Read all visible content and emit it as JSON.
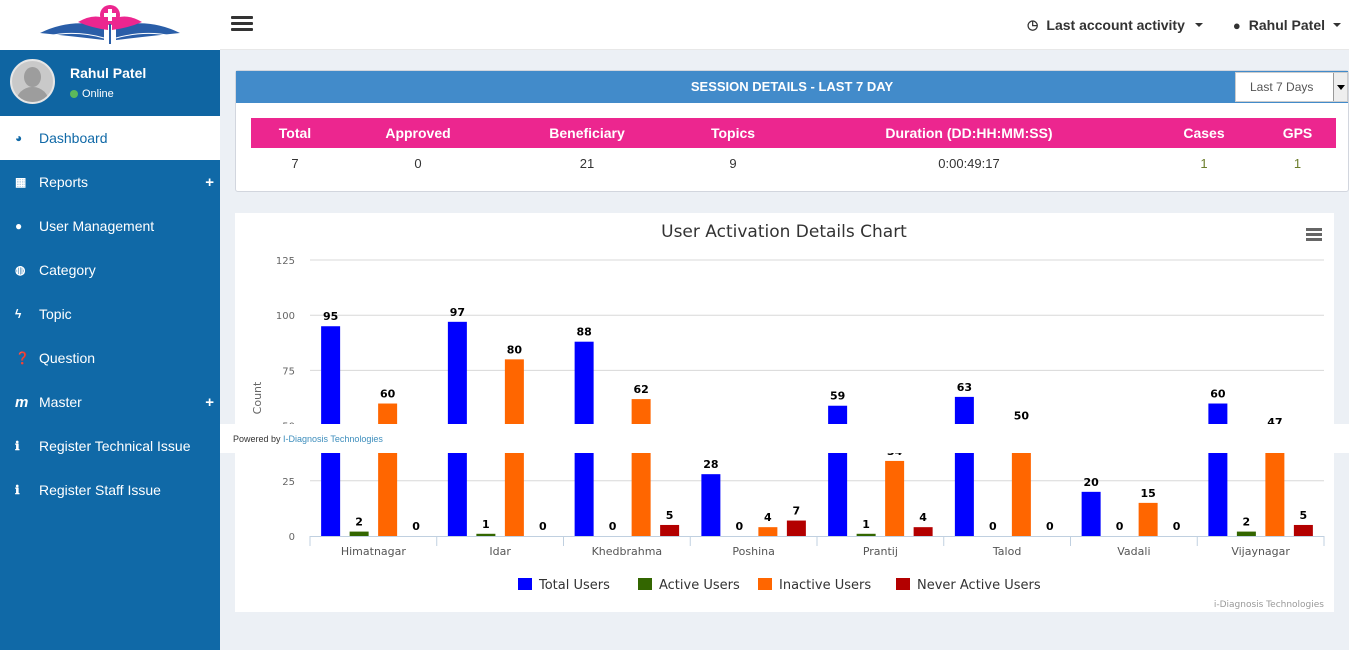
{
  "header": {
    "last_activity": "Last account activity",
    "user_menu": "Rahul Patel"
  },
  "sidebar": {
    "user_name": "Rahul Patel",
    "status": "Online",
    "items": [
      {
        "label": "Dashboard",
        "icon": "dashboard-icon",
        "glyph": "◕",
        "active": true
      },
      {
        "label": "Reports",
        "icon": "table-icon",
        "glyph": "▦",
        "expandable": true
      },
      {
        "label": "User Management",
        "icon": "user-icon",
        "glyph": "●"
      },
      {
        "label": "Category",
        "icon": "globe-icon",
        "glyph": "◍"
      },
      {
        "label": "Topic",
        "icon": "bolt-icon",
        "glyph": "ϟ"
      },
      {
        "label": "Question",
        "icon": "question-circle-icon",
        "glyph": "❓"
      },
      {
        "label": "Master",
        "icon": "m-icon",
        "glyph": "m",
        "expandable": true
      },
      {
        "label": "Register Technical Issue",
        "icon": "info-circle-icon",
        "glyph": "ℹ"
      },
      {
        "label": "Register Staff Issue",
        "icon": "info-circle-icon",
        "glyph": "ℹ"
      }
    ]
  },
  "session": {
    "title": "SESSION DETAILS - LAST 7 DAY",
    "period_selected": "Last 7 Days",
    "columns": [
      "Total",
      "Approved",
      "Beneficiary",
      "Topics",
      "Duration (DD:HH:MM:SS)",
      "Cases",
      "GPS"
    ],
    "values": [
      "7",
      "0",
      "21",
      "9",
      "0:00:49:17",
      "1",
      "1"
    ]
  },
  "powered": {
    "prefix": "Powered by ",
    "link": "I-Diagnosis Technologies"
  },
  "chart_data": {
    "type": "bar",
    "title": "User Activation Details Chart",
    "xlabel": "",
    "ylabel": "Count",
    "ylim": [
      0,
      125
    ],
    "yticks": [
      0,
      25,
      50,
      75,
      100,
      125
    ],
    "grid": true,
    "legend": "bottom-center",
    "credits": "i-Diagnosis Technologies",
    "categories": [
      "Himatnagar",
      "Idar",
      "Khedbrahma",
      "Poshina",
      "Prantij",
      "Talod",
      "Vadali",
      "Vijaynagar"
    ],
    "series": [
      {
        "name": "Total Users",
        "color": "#0000ff",
        "values": [
          95,
          97,
          88,
          28,
          59,
          63,
          20,
          60
        ]
      },
      {
        "name": "Active Users",
        "color": "#336600",
        "values": [
          2,
          1,
          0,
          0,
          1,
          0,
          0,
          2
        ]
      },
      {
        "name": "Inactive Users",
        "color": "#ff6600",
        "values": [
          60,
          80,
          62,
          4,
          34,
          50,
          15,
          47
        ]
      },
      {
        "name": "Never Active Users",
        "color": "#b30000",
        "values": [
          0,
          0,
          5,
          7,
          4,
          0,
          0,
          5
        ]
      }
    ]
  }
}
